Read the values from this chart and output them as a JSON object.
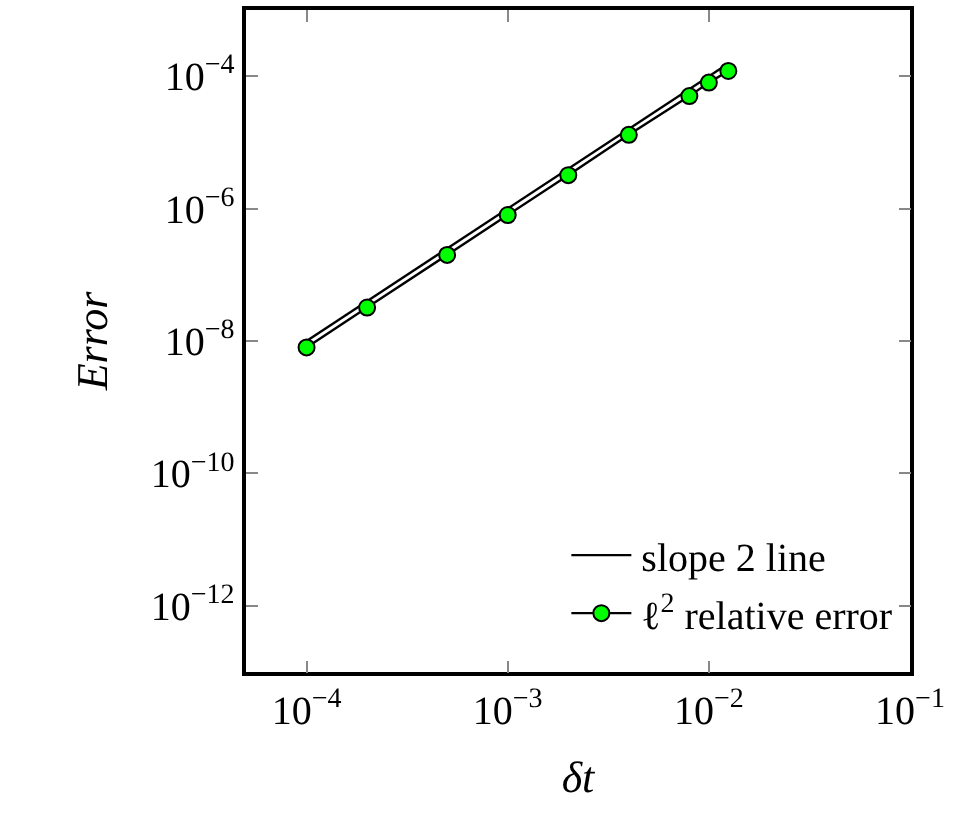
{
  "chart_data": {
    "type": "line",
    "xlabel": "δt",
    "ylabel": "Error",
    "log": "xy",
    "xlim": [
      5e-05,
      0.1
    ],
    "ylim": [
      1e-13,
      0.001
    ],
    "xticks": [
      {
        "value": 0.0001,
        "label": "10$^{−4}$"
      },
      {
        "value": 0.001,
        "label": "10$^{−3}$"
      },
      {
        "value": 0.01,
        "label": "10$^{−2}$"
      },
      {
        "value": 0.1,
        "label": "10$^{−1}$"
      }
    ],
    "yticks": [
      {
        "value": 1e-12,
        "label": "10$^{−12}$"
      },
      {
        "value": 1e-10,
        "label": "10$^{−10}$"
      },
      {
        "value": 1e-08,
        "label": "10$^{−8}$"
      },
      {
        "value": 1e-06,
        "label": "10$^{−6}$"
      },
      {
        "value": 0.0001,
        "label": "10$^{−4}$"
      }
    ],
    "legend": "bottom right",
    "line_style": "solid",
    "series": [
      {
        "name": "slope 2 line",
        "color": "#000000",
        "marker": "none",
        "x": [
          0.0001,
          0.0125
        ],
        "values": [
          1e-08,
          0.000156
        ]
      },
      {
        "name": "ℓ$^{2}$ relative error",
        "color": "#00ff00",
        "marker": "circle",
        "x": [
          0.0001,
          0.0002,
          0.0005,
          0.001,
          0.002,
          0.004,
          0.008,
          0.01,
          0.0125
        ],
        "values": [
          8e-09,
          3.2e-08,
          2e-07,
          8e-07,
          3.2e-06,
          1.3e-05,
          5e-05,
          8e-05,
          0.00012
        ]
      }
    ]
  }
}
